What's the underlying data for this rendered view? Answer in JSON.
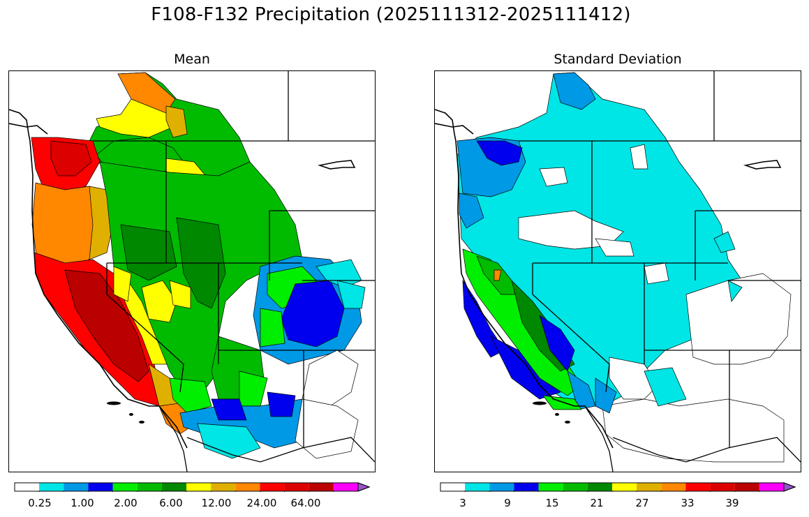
{
  "title": "F108-F132 Precipitation (2025111312-2025111412)",
  "panels": [
    {
      "title": "Mean",
      "colorbar": {
        "colors": [
          "#ffffff",
          "#00e5e5",
          "#0099e6",
          "#0000ee",
          "#00ee00",
          "#00bb00",
          "#008800",
          "#ffff00",
          "#e0b000",
          "#ff8800",
          "#ff0000",
          "#dd0000",
          "#bb0000",
          "#ff00ff",
          "#9955cc"
        ],
        "tick_labels": [
          "0.25",
          "1.00",
          "2.00",
          "6.00",
          "12.00",
          "24.00",
          "64.00"
        ]
      }
    },
    {
      "title": "Standard Deviation",
      "colorbar": {
        "colors": [
          "#ffffff",
          "#00e5e5",
          "#0099e6",
          "#0000ee",
          "#00ee00",
          "#00bb00",
          "#008800",
          "#ffff00",
          "#e0b000",
          "#ff8800",
          "#ff0000",
          "#dd0000",
          "#bb0000",
          "#ff00ff",
          "#9955cc"
        ],
        "tick_labels": [
          "3",
          "9",
          "15",
          "21",
          "27",
          "33",
          "39"
        ]
      }
    }
  ]
}
